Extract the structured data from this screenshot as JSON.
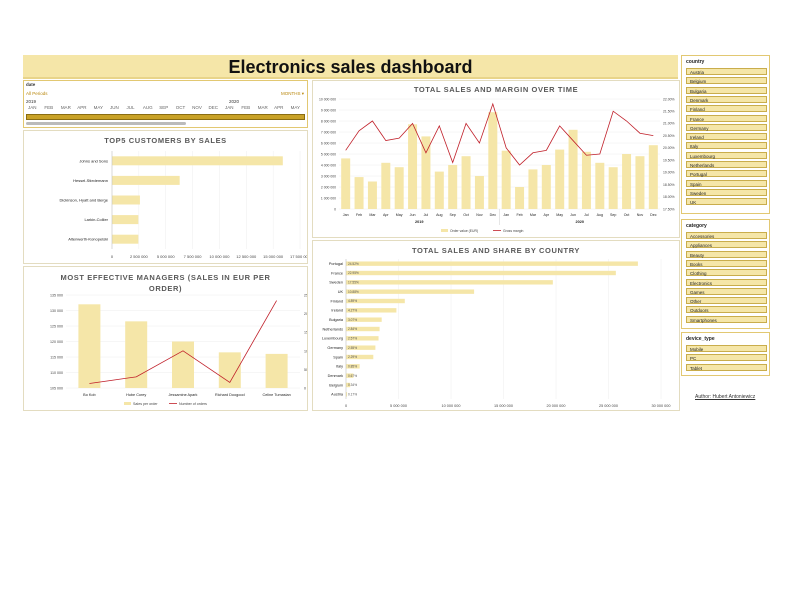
{
  "header": {
    "title": "Electronics sales dashboard"
  },
  "timeline": {
    "title": "date",
    "range_label": "All Periods",
    "granularity": "MONTHS",
    "year_2019": "2019",
    "year_2020": "2020",
    "months": [
      "JAN",
      "FEB",
      "MAR",
      "APR",
      "MAY",
      "JUN",
      "JUL",
      "AUG",
      "SEP",
      "OCT",
      "NOV",
      "DEC",
      "JAN",
      "FEB",
      "MAR",
      "APR",
      "MAY"
    ]
  },
  "customers_chart": {
    "title": "TOP5 CUSTOMERS BY SALES",
    "x_ticks": [
      "0",
      "2 500 000",
      "5 000 000",
      "7 500 000",
      "10 000 000",
      "12 500 000",
      "15 000 000",
      "17 500 000"
    ]
  },
  "managers_chart": {
    "title": "MOST EFFECTIVE MANAGERS (SALES IN EUR PER ORDER)",
    "y_left_ticks": [
      "105 000",
      "110 000",
      "115 000",
      "120 000",
      "125 000",
      "130 000",
      "135 000"
    ],
    "y_right_ticks": [
      "0",
      "50",
      "100",
      "150",
      "200",
      "250"
    ]
  },
  "sales_time_chart": {
    "title": "TOTAL SALES AND MARGIN OVER TIME",
    "y_left_ticks": [
      "0",
      "1 000 000",
      "2 000 000",
      "3 000 000",
      "4 000 000",
      "5 000 000",
      "6 000 000",
      "7 000 000",
      "8 000 000",
      "9 000 000",
      "10 000 000"
    ],
    "y_right_ticks": [
      "17.50%",
      "18.00%",
      "18.50%",
      "19.00%",
      "19.50%",
      "20.00%",
      "20.50%",
      "21.00%",
      "21.50%",
      "22.00%"
    ],
    "year_labels": [
      "2019",
      "2020"
    ]
  },
  "country_chart": {
    "title": "TOTAL SALES AND SHARE BY COUNTRY",
    "x_ticks": [
      "0",
      "5 000 000",
      "10 000 000",
      "15 000 000",
      "20 000 000",
      "25 000 000",
      "30 000 000"
    ]
  },
  "chart_data": [
    {
      "type": "bar",
      "title": "TOP5 CUSTOMERS BY SALES",
      "orientation": "horizontal",
      "categories": [
        "Johns and Sons",
        "Hessel-Stiedemann",
        "Dickinson, Hyatt and Berge",
        "Larkin-Collier",
        "Altenwerth-Konopelski"
      ],
      "values": [
        15900000,
        6300000,
        2600000,
        2450000,
        2450000
      ],
      "xlim": [
        0,
        17500000
      ]
    },
    {
      "type": "bar",
      "title": "MOST EFFECTIVE MANAGERS (SALES IN EUR PER ORDER)",
      "categories": [
        "Bo Kob",
        "Hube Corey",
        "Jessamine Apark",
        "Richard Doogood",
        "Celine Tumasian"
      ],
      "series": [
        {
          "name": "Sales per order",
          "type": "bar",
          "axis": "left",
          "values": [
            132000,
            126500,
            120000,
            116500,
            116000
          ]
        },
        {
          "name": "Number of orders",
          "type": "line",
          "axis": "right",
          "values": [
            12,
            30,
            100,
            15,
            235
          ]
        }
      ],
      "ylim_left": [
        105000,
        135000
      ],
      "ylim_right": [
        0,
        250
      ],
      "legend": "bottom"
    },
    {
      "type": "bar",
      "title": "TOTAL SALES AND MARGIN OVER TIME",
      "categories": [
        "Jan",
        "Feb",
        "Mar",
        "Apr",
        "May",
        "Jun",
        "Jul",
        "Aug",
        "Sep",
        "Oct",
        "Nov",
        "Dec",
        "Jan",
        "Feb",
        "Mar",
        "Apr",
        "May",
        "Jun",
        "Jul",
        "Aug",
        "Sep",
        "Oct",
        "Nov",
        "Dec"
      ],
      "series": [
        {
          "name": "Order value (EUR)",
          "type": "bar",
          "axis": "left",
          "values": [
            4600000,
            2900000,
            2500000,
            4200000,
            3800000,
            7700000,
            6600000,
            3400000,
            4000000,
            4800000,
            3000000,
            8800000,
            5300000,
            2000000,
            3600000,
            4000000,
            5400000,
            7200000,
            5200000,
            4200000,
            3800000,
            5000000,
            4800000,
            5800000
          ]
        },
        {
          "name": "Gross margin",
          "type": "line",
          "axis": "right",
          "values": [
            19.9,
            20.7,
            21.1,
            20.3,
            20.4,
            21.0,
            19.8,
            20.9,
            19.4,
            21.0,
            20.2,
            21.8,
            20.0,
            19.3,
            19.8,
            19.9,
            20.9,
            20.3,
            19.7,
            19.75,
            21.5,
            21.1,
            20.6,
            20.5
          ]
        }
      ],
      "ylim_left": [
        0,
        10000000
      ],
      "ylim_right": [
        17.5,
        22.0
      ],
      "legend": "bottom"
    },
    {
      "type": "bar",
      "title": "TOTAL SALES AND SHARE BY COUNTRY",
      "orientation": "horizontal",
      "categories": [
        "Portugal",
        "France",
        "Sweden",
        "UK",
        "Finland",
        "Ireland",
        "Bulgaria",
        "Netherlands",
        "Luxembourg",
        "Germany",
        "Spain",
        "Italy",
        "Denmark",
        "Belgium",
        "Austria"
      ],
      "values": [
        27800000,
        25700000,
        19700000,
        12200000,
        5600000,
        4800000,
        3400000,
        3200000,
        3100000,
        2800000,
        2600000,
        1300000,
        700000,
        400000,
        100000
      ],
      "share_labels": [
        "24.52%",
        "22.95%",
        "17.55%",
        "10.88%",
        "4.89%",
        "4.27%",
        "3.07%",
        "2.84%",
        "2.57%",
        "2.55%",
        "2.29%",
        "0.85%",
        "0.67%",
        "0.34%",
        "0.17%"
      ],
      "xlim": [
        0,
        30000000
      ]
    }
  ],
  "slicers": {
    "country": {
      "title": "country",
      "items": [
        "Austria",
        "Belgium",
        "Bulgaria",
        "Denmark",
        "Finland",
        "France",
        "Germany",
        "Ireland",
        "Italy",
        "Luxembourg",
        "Netherlands",
        "Portugal",
        "Spain",
        "Sweden",
        "UK"
      ]
    },
    "category": {
      "title": "category",
      "items": [
        "Accessories",
        "Appliances",
        "Beauty",
        "Books",
        "Clothing",
        "Electronics",
        "Games",
        "Other",
        "Outdoors",
        "Smartphones"
      ]
    },
    "device_type": {
      "title": "device_type",
      "items": [
        "Mobile",
        "PC",
        "Tablet"
      ]
    }
  },
  "footer": {
    "author": "Author: Hubert Antoniewicz"
  },
  "colors": {
    "bar": "#f5e6a8",
    "line": "#c0202a",
    "slicer_bg": "#f5e6a8",
    "slicer_border": "#c9ad4c",
    "timeline_bar": "#c9a227"
  }
}
